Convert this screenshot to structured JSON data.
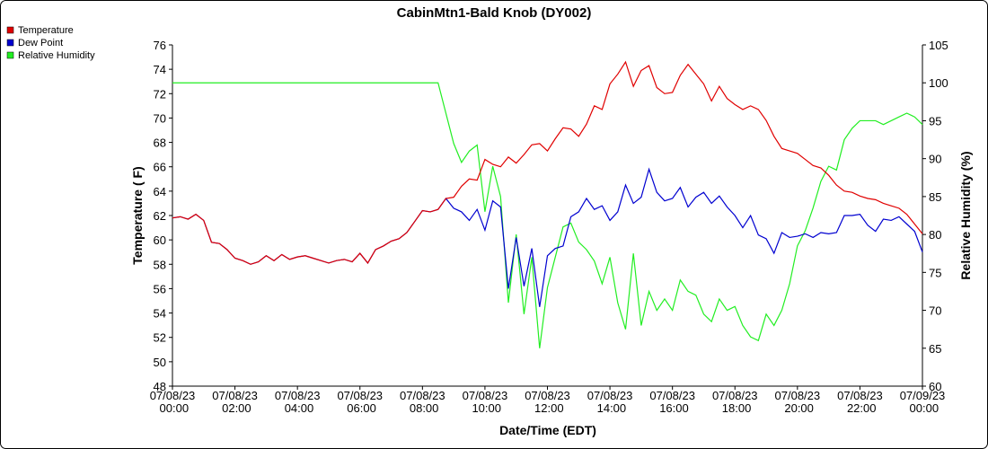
{
  "chart_data": {
    "type": "line",
    "title": "CabinMtn1-Bald Knob (DY002)",
    "xlabel": "Date/Time (EDT)",
    "ylabel": "Temperature ( F)",
    "y2label": "Relative Humidity (%)",
    "legend": "top-left",
    "grid": false,
    "xlim": [
      0,
      24
    ],
    "xticks": [
      {
        "value": 0,
        "label": "07/08/23 00:00"
      },
      {
        "value": 2,
        "label": "07/08/23 02:00"
      },
      {
        "value": 4,
        "label": "07/08/23 04:00"
      },
      {
        "value": 6,
        "label": "07/08/23 06:00"
      },
      {
        "value": 8,
        "label": "07/08/23 08:00"
      },
      {
        "value": 10,
        "label": "07/08/23 10:00"
      },
      {
        "value": 12,
        "label": "07/08/23 12:00"
      },
      {
        "value": 14,
        "label": "07/08/23 14:00"
      },
      {
        "value": 16,
        "label": "07/08/23 16:00"
      },
      {
        "value": 18,
        "label": "07/08/23 18:00"
      },
      {
        "value": 20,
        "label": "07/08/23 20:00"
      },
      {
        "value": 22,
        "label": "07/08/23 22:00"
      },
      {
        "value": 24,
        "label": "07/09/23 00:00"
      }
    ],
    "ylim": [
      48,
      76
    ],
    "yticks": [
      48,
      50,
      52,
      54,
      56,
      58,
      60,
      62,
      64,
      66,
      68,
      70,
      72,
      74,
      76
    ],
    "y2lim": [
      60,
      105
    ],
    "y2ticks": [
      60,
      65,
      70,
      75,
      80,
      85,
      90,
      95,
      100,
      105
    ],
    "x": [
      0,
      0.25,
      0.5,
      0.75,
      1,
      1.25,
      1.5,
      1.75,
      2,
      2.25,
      2.5,
      2.75,
      3,
      3.25,
      3.5,
      3.75,
      4,
      4.25,
      4.5,
      4.75,
      5,
      5.25,
      5.5,
      5.75,
      6,
      6.25,
      6.5,
      6.75,
      7,
      7.25,
      7.5,
      7.75,
      8,
      8.25,
      8.5,
      8.75,
      9,
      9.25,
      9.5,
      9.75,
      10,
      10.25,
      10.5,
      10.75,
      11,
      11.25,
      11.5,
      11.75,
      12,
      12.25,
      12.5,
      12.75,
      13,
      13.25,
      13.5,
      13.75,
      14,
      14.25,
      14.5,
      14.75,
      15,
      15.25,
      15.5,
      15.75,
      16,
      16.25,
      16.5,
      16.75,
      17,
      17.25,
      17.5,
      17.75,
      18,
      18.25,
      18.5,
      18.75,
      19,
      19.25,
      19.5,
      19.75,
      20,
      20.25,
      20.5,
      20.75,
      21,
      21.25,
      21.5,
      21.75,
      22,
      22.25,
      22.5,
      22.75,
      23,
      23.25,
      23.5,
      23.75,
      24
    ],
    "series": [
      {
        "name": "Temperature",
        "color": "#e00000",
        "values": [
          61.8,
          61.9,
          61.7,
          62.1,
          61.6,
          59.8,
          59.7,
          59.2,
          58.5,
          58.3,
          58.0,
          58.2,
          58.7,
          58.3,
          58.8,
          58.4,
          58.6,
          58.7,
          58.5,
          58.3,
          58.1,
          58.3,
          58.4,
          58.2,
          58.9,
          58.1,
          59.2,
          59.5,
          59.9,
          60.1,
          60.6,
          61.5,
          62.4,
          62.3,
          62.5,
          63.4,
          63.5,
          64.4,
          65.0,
          64.9,
          66.6,
          66.2,
          66.0,
          66.8,
          66.3,
          67.0,
          67.8,
          67.9,
          67.3,
          68.3,
          69.2,
          69.1,
          68.5,
          69.5,
          71.0,
          70.7,
          72.8,
          73.6,
          74.6,
          72.6,
          73.9,
          74.3,
          72.5,
          72.0,
          72.1,
          73.5,
          74.4,
          73.6,
          72.8,
          71.4,
          72.6,
          71.6,
          71.1,
          70.7,
          71.0,
          70.7,
          69.8,
          68.5,
          67.5,
          67.3,
          67.1,
          66.6,
          66.1,
          65.9,
          65.3,
          64.5,
          64.0,
          63.9,
          63.6,
          63.4,
          63.3,
          63.0,
          62.8,
          62.6,
          62.1,
          61.3,
          60.5
        ]
      },
      {
        "name": "Dew Point",
        "color": "#0000d0",
        "values": [
          61.8,
          61.9,
          61.7,
          62.1,
          61.6,
          59.8,
          59.7,
          59.2,
          58.5,
          58.3,
          58.0,
          58.2,
          58.7,
          58.3,
          58.8,
          58.4,
          58.6,
          58.7,
          58.5,
          58.3,
          58.1,
          58.3,
          58.4,
          58.2,
          58.9,
          58.1,
          59.2,
          59.5,
          59.9,
          60.1,
          60.6,
          61.5,
          62.4,
          62.3,
          62.5,
          63.4,
          62.6,
          62.3,
          61.6,
          62.5,
          60.8,
          63.2,
          62.7,
          56.0,
          60.2,
          56.2,
          59.3,
          54.5,
          58.7,
          59.3,
          59.5,
          61.9,
          62.3,
          63.4,
          62.5,
          62.8,
          61.6,
          62.3,
          64.5,
          63.0,
          63.5,
          65.8,
          63.9,
          63.2,
          63.4,
          64.3,
          62.7,
          63.5,
          63.9,
          63.0,
          63.6,
          62.7,
          62.0,
          61.0,
          62.0,
          60.4,
          60.1,
          58.9,
          60.6,
          60.2,
          60.3,
          60.5,
          60.2,
          60.6,
          60.5,
          60.6,
          62.0,
          62.0,
          62.1,
          61.2,
          60.7,
          61.7,
          61.6,
          61.9,
          61.3,
          60.7,
          59.0
        ]
      },
      {
        "name": "Relative Humidity",
        "color": "#22ee22",
        "axis": "y2",
        "values": [
          100,
          100,
          100,
          100,
          100,
          100,
          100,
          100,
          100,
          100,
          100,
          100,
          100,
          100,
          100,
          100,
          100,
          100,
          100,
          100,
          100,
          100,
          100,
          100,
          100,
          100,
          100,
          100,
          100,
          100,
          100,
          100,
          100,
          100,
          100,
          96,
          92,
          89.5,
          91,
          91.8,
          83,
          89,
          85,
          71,
          80,
          69.5,
          77,
          65,
          73,
          77,
          81,
          81.5,
          79,
          78,
          76.5,
          73.5,
          77,
          71,
          67.5,
          77.5,
          68,
          72.5,
          70,
          71.5,
          70,
          74,
          72.5,
          72,
          69.5,
          68.5,
          71.5,
          70,
          70.5,
          68,
          66.5,
          66,
          69.5,
          68,
          70,
          73.5,
          78.5,
          80.5,
          83.5,
          87,
          89,
          88.5,
          92.5,
          94,
          95,
          95,
          95,
          94.5,
          95,
          95.5,
          96,
          95.5,
          94.5
        ]
      }
    ]
  }
}
